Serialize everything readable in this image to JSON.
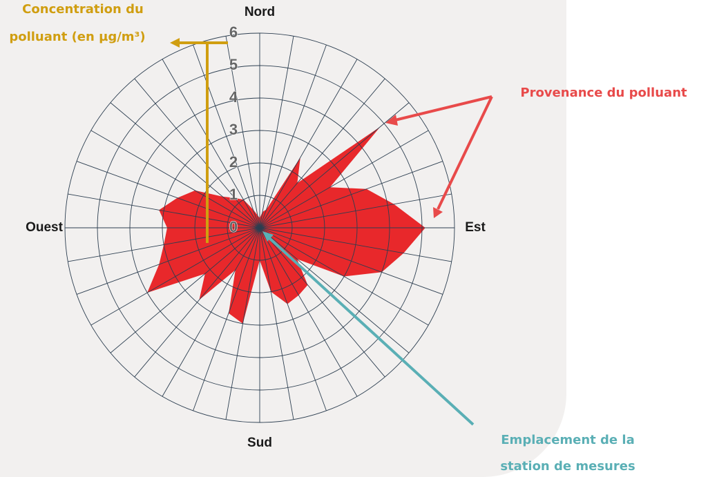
{
  "chart_data": {
    "type": "polar",
    "categories": [
      "Nord",
      null,
      null,
      null,
      null,
      null,
      null,
      null,
      null,
      "Est",
      null,
      null,
      null,
      null,
      null,
      null,
      null,
      null,
      "Sud",
      null,
      null,
      null,
      null,
      null,
      null,
      null,
      null,
      "Ouest",
      null,
      null,
      null,
      null,
      null,
      null,
      null,
      null
    ],
    "values": [
      0.3,
      0.5,
      0.6,
      2.5,
      1.8,
      4.85,
      2.5,
      3.5,
      4.2,
      5.1,
      4.5,
      4.0,
      3.0,
      1.5,
      2.3,
      2.4,
      2.5,
      2.0,
      1.0,
      3.0,
      2.8,
      1.5,
      2.9,
      2.2,
      4.0,
      3.3,
      3.0,
      2.85,
      3.15,
      2.7,
      2.3,
      1.5,
      1.2,
      1.0,
      0.6,
      0.4
    ],
    "color": "#e8282b",
    "rlim": [
      0,
      6
    ],
    "rticks": [
      0,
      1,
      2,
      3,
      4,
      5,
      6
    ],
    "grid": true,
    "annotations": {
      "concentration": [
        "Concentration du",
        "polluant (en µg/m³)"
      ],
      "provenance": "Provenance du polluant",
      "station": [
        "Emplacement de la",
        "station de mesures"
      ]
    }
  }
}
